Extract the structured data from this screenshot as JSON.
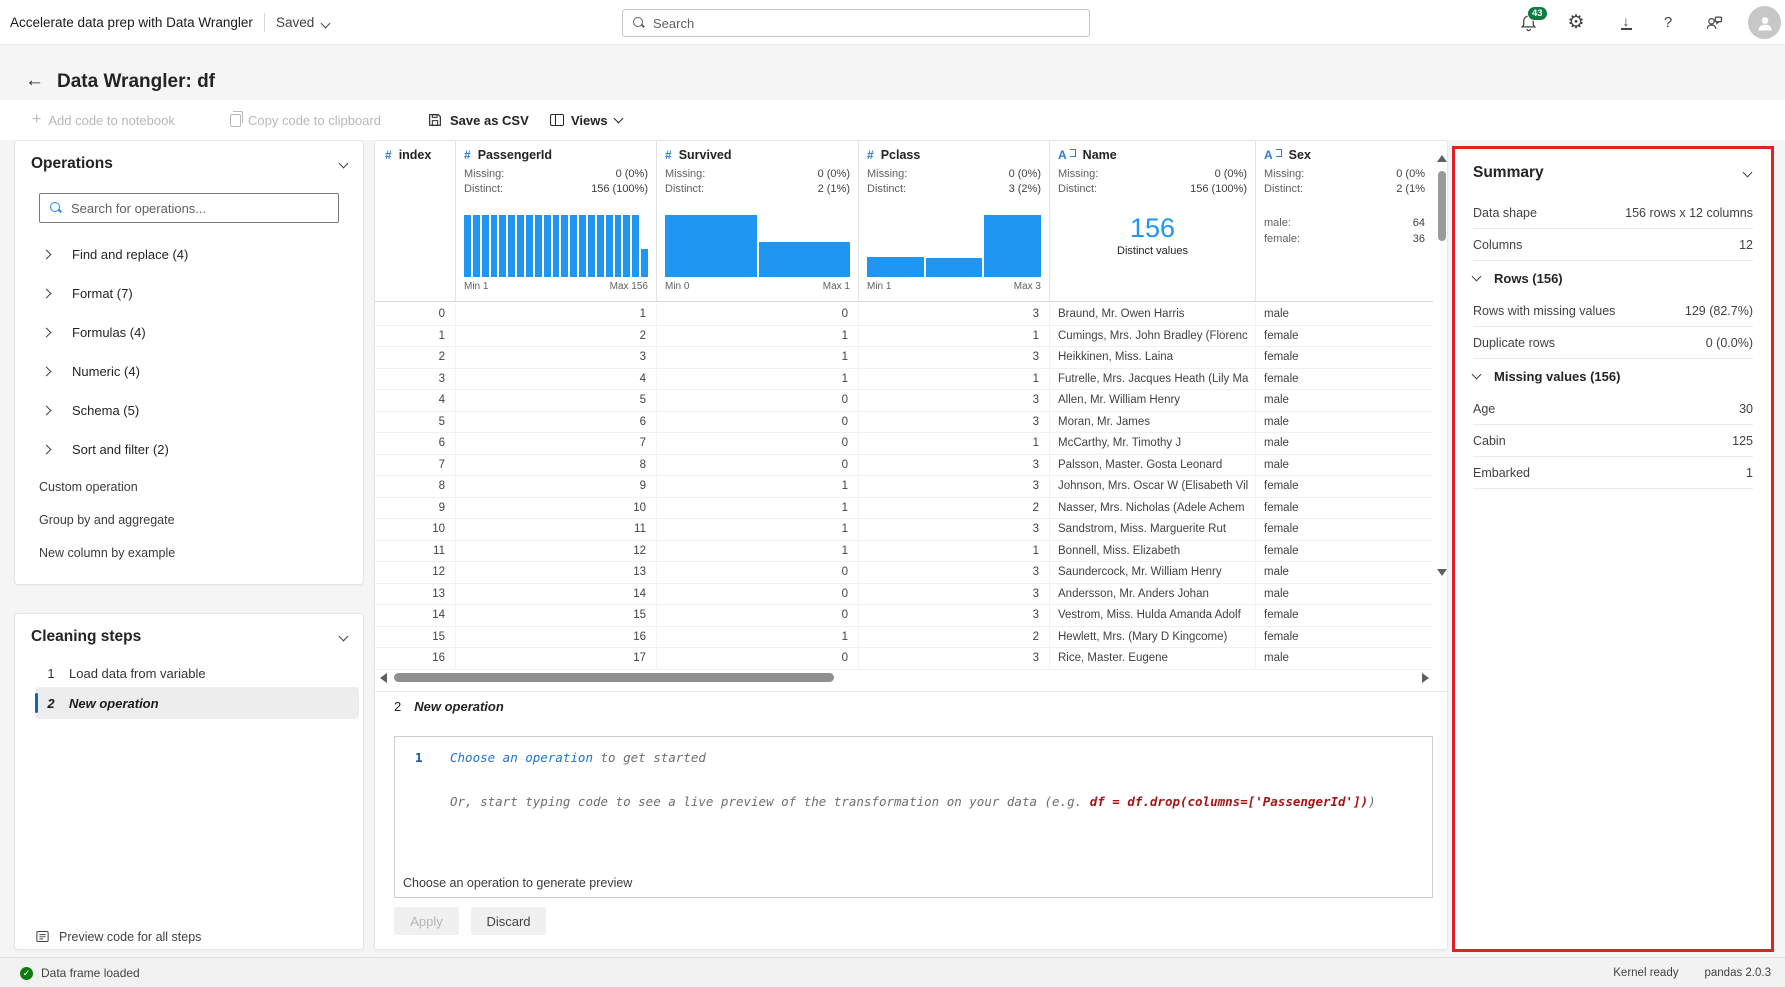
{
  "topbar": {
    "app_title": "Accelerate data prep with Data Wrangler",
    "saved_label": "Saved",
    "search_placeholder": "Search",
    "notification_count": "43"
  },
  "header": {
    "title": "Data Wrangler: df"
  },
  "toolbar": {
    "add_code": "Add code to notebook",
    "copy_code": "Copy code to clipboard",
    "save_csv": "Save as CSV",
    "views": "Views"
  },
  "operations_panel": {
    "title": "Operations",
    "search_placeholder": "Search for operations...",
    "groups": [
      "Find and replace (4)",
      "Format (7)",
      "Formulas (4)",
      "Numeric (4)",
      "Schema (5)",
      "Sort and filter (2)"
    ],
    "links": [
      "Custom operation",
      "Group by and aggregate",
      "New column by example"
    ]
  },
  "cleaning_panel": {
    "title": "Cleaning steps",
    "steps": [
      {
        "num": "1",
        "label": "Load data from variable",
        "active": false
      },
      {
        "num": "2",
        "label": "New operation",
        "active": true
      }
    ],
    "footer": "Preview code for all steps"
  },
  "grid": {
    "columns": [
      {
        "name": "index",
        "icon": "#"
      },
      {
        "name": "PassengerId",
        "icon": "#",
        "missing": "0 (0%)",
        "distinct": "156 (100%)",
        "hist": [
          100,
          100,
          100,
          100,
          100,
          100,
          100,
          100,
          100,
          100,
          100,
          100,
          100,
          100,
          100,
          100,
          100,
          100,
          100,
          100,
          45
        ],
        "min": "Min 1",
        "max": "Max 156"
      },
      {
        "name": "Survived",
        "icon": "#",
        "missing": "0 (0%)",
        "distinct": "2 (1%)",
        "hist": [
          100,
          57
        ],
        "min": "Min 0",
        "max": "Max 1"
      },
      {
        "name": "Pclass",
        "icon": "#",
        "missing": "0 (0%)",
        "distinct": "3 (2%)",
        "hist": [
          33,
          30,
          100
        ],
        "min": "Min 1",
        "max": "Max 3"
      },
      {
        "name": "Name",
        "icon": "A",
        "missing": "0 (0%)",
        "distinct": "156 (100%)",
        "big_value": "156",
        "big_label": "Distinct values"
      },
      {
        "name": "Sex",
        "icon": "A",
        "missing": "0 (0%",
        "distinct": "2 (1%",
        "counts": [
          {
            "label": "male:",
            "value": "64"
          },
          {
            "label": "female:",
            "value": "36"
          }
        ]
      }
    ],
    "stat_labels": {
      "missing": "Missing:",
      "distinct": "Distinct:"
    },
    "rows": [
      [
        "0",
        "1",
        "0",
        "3",
        "Braund, Mr. Owen Harris",
        "male"
      ],
      [
        "1",
        "2",
        "1",
        "1",
        "Cumings, Mrs. John Bradley (Florenc",
        "female"
      ],
      [
        "2",
        "3",
        "1",
        "3",
        "Heikkinen, Miss. Laina",
        "female"
      ],
      [
        "3",
        "4",
        "1",
        "1",
        "Futrelle, Mrs. Jacques Heath (Lily Ma",
        "female"
      ],
      [
        "4",
        "5",
        "0",
        "3",
        "Allen, Mr. William Henry",
        "male"
      ],
      [
        "5",
        "6",
        "0",
        "3",
        "Moran, Mr. James",
        "male"
      ],
      [
        "6",
        "7",
        "0",
        "1",
        "McCarthy, Mr. Timothy J",
        "male"
      ],
      [
        "7",
        "8",
        "0",
        "3",
        "Palsson, Master. Gosta Leonard",
        "male"
      ],
      [
        "8",
        "9",
        "1",
        "3",
        "Johnson, Mrs. Oscar W (Elisabeth Vil",
        "female"
      ],
      [
        "9",
        "10",
        "1",
        "2",
        "Nasser, Mrs. Nicholas (Adele Achem",
        "female"
      ],
      [
        "10",
        "11",
        "1",
        "3",
        "Sandstrom, Miss. Marguerite Rut",
        "female"
      ],
      [
        "11",
        "12",
        "1",
        "1",
        "Bonnell, Miss. Elizabeth",
        "female"
      ],
      [
        "12",
        "13",
        "0",
        "3",
        "Saundercock, Mr. William Henry",
        "male"
      ],
      [
        "13",
        "14",
        "0",
        "3",
        "Andersson, Mr. Anders Johan",
        "male"
      ],
      [
        "14",
        "15",
        "0",
        "3",
        "Vestrom, Miss. Hulda Amanda Adolf",
        "female"
      ],
      [
        "15",
        "16",
        "1",
        "2",
        "Hewlett, Mrs. (Mary D Kingcome)",
        "female"
      ],
      [
        "16",
        "17",
        "0",
        "3",
        "Rice, Master. Eugene",
        "male"
      ]
    ]
  },
  "summary": {
    "title": "Summary",
    "rows": [
      {
        "label": "Data shape",
        "value": "156 rows x 12 columns"
      },
      {
        "label": "Columns",
        "value": "12"
      },
      {
        "section": "Rows (156)"
      },
      {
        "label": "Rows with missing values",
        "value": "129 (82.7%)"
      },
      {
        "label": "Duplicate rows",
        "value": "0 (0.0%)"
      },
      {
        "section": "Missing values (156)"
      },
      {
        "label": "Age",
        "value": "30"
      },
      {
        "label": "Cabin",
        "value": "125"
      },
      {
        "label": "Embarked",
        "value": "1"
      }
    ]
  },
  "ops_section": {
    "step_num": "2",
    "step_label": "New operation",
    "line_no": "1",
    "code_line1": [
      {
        "t": "Choose an operation",
        "c": "blue"
      },
      {
        "t": " to get started",
        "c": "gray"
      }
    ],
    "code_line2": [
      {
        "t": "Or, start typing code to see a live preview of the transformation on your data (e.g. ",
        "c": "gray"
      },
      {
        "t": "df = df.drop(columns=['PassengerId'])",
        "c": "maroon"
      },
      {
        "t": ")",
        "c": "gray"
      }
    ],
    "preview_note": "Choose an operation to generate preview",
    "apply_label": "Apply",
    "discard_label": "Discard"
  },
  "statusbar": {
    "status": "Data frame loaded",
    "kernel": "Kernel ready",
    "pandas": "pandas 2.0.3"
  }
}
